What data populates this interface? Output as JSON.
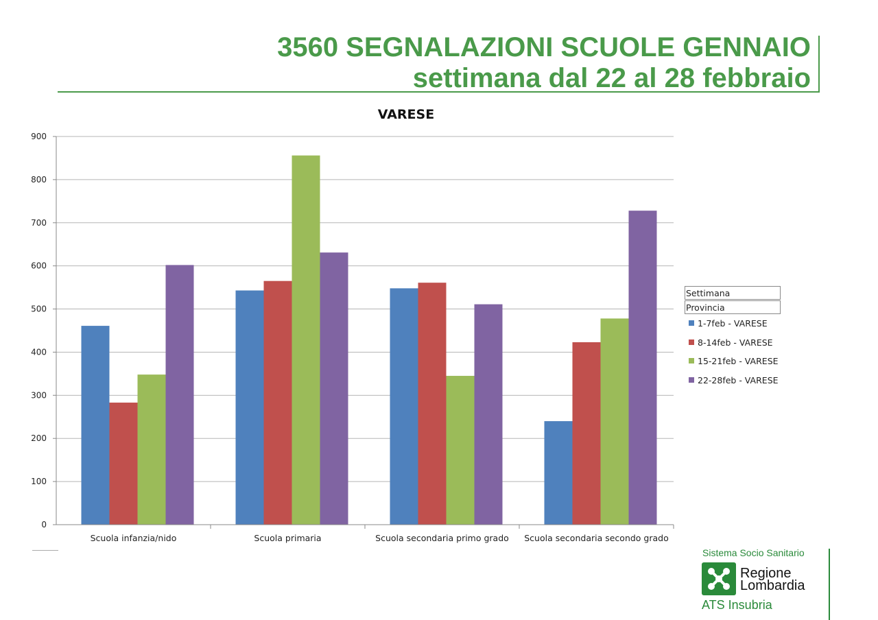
{
  "header": {
    "title_line1": "3560 SEGNALAZIONI SCUOLE GENNAIO",
    "title_line2": "settimana dal 22 al 28 febbraio",
    "accent_color": "#4a9a4a"
  },
  "chart_data": {
    "type": "bar",
    "title": "VARESE",
    "categories": [
      "Scuola infanzia/nido",
      "Scuola primaria",
      "Scuola secondaria primo grado",
      "Scuola secondaria secondo grado"
    ],
    "ylim": [
      0,
      900
    ],
    "yticks": [
      0,
      100,
      200,
      300,
      400,
      500,
      600,
      700,
      800,
      900
    ],
    "grid": true,
    "legend_position": "right",
    "legend_header": [
      "Settimana",
      "Provincia"
    ],
    "series": [
      {
        "name": "1-7feb - VARESE",
        "color": "#4f81bd",
        "values": [
          461,
          543,
          548,
          240
        ]
      },
      {
        "name": "8-14feb - VARESE",
        "color": "#c0504d",
        "values": [
          283,
          565,
          561,
          423
        ]
      },
      {
        "name": "15-21feb - VARESE",
        "color": "#9bbb59",
        "values": [
          348,
          856,
          345,
          478
        ]
      },
      {
        "name": "22-28feb - VARESE",
        "color": "#8064a2",
        "values": [
          602,
          631,
          511,
          728
        ]
      }
    ]
  },
  "logo": {
    "supertitle": "Sistema Socio Sanitario",
    "line1": "Regione",
    "line2": "Lombardia",
    "subtitle": "ATS Insubria",
    "icon": "regione-lombardia-rose-icon",
    "color": "#2a8a3a"
  }
}
